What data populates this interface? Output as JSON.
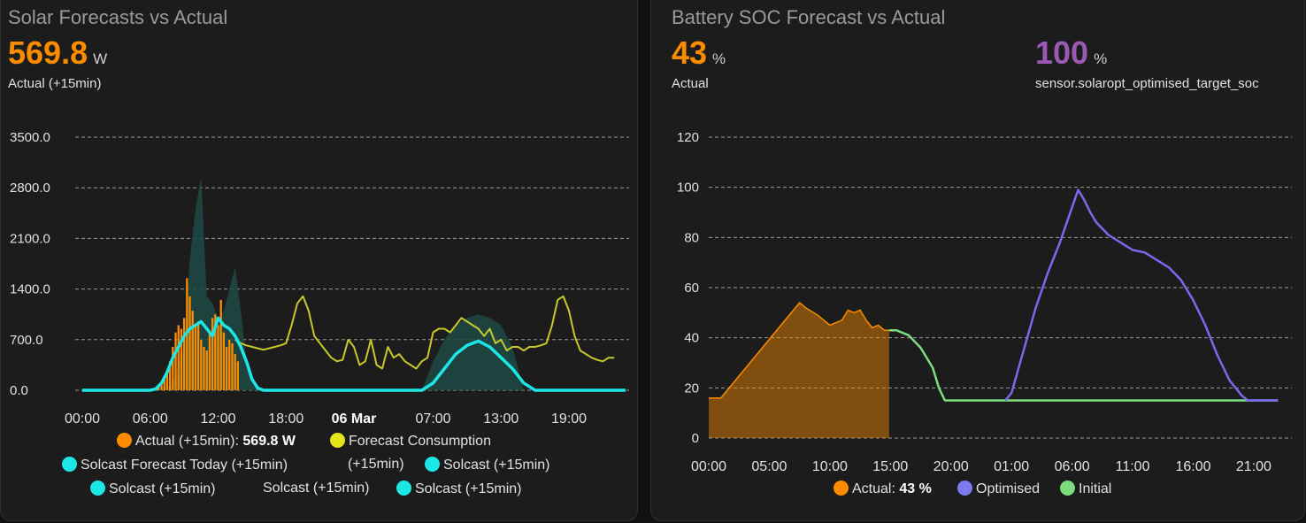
{
  "solar_card": {
    "title": "Solar Forecasts vs Actual",
    "state_value": "569.8",
    "state_unit": "W",
    "state_label": "Actual (+15min)",
    "value_color": "#fb8c00",
    "legend": {
      "actual_label": "Actual (+15min):",
      "actual_value": "569.8 W",
      "forecast_consumption": "Forecast Consumption",
      "solcast_today": "Solcast Forecast Today (+15min)",
      "plus15": "(+15min)",
      "solcast_1": "Solcast (+15min)",
      "solcast_2": "Solcast (+15min)",
      "solcast_3": "Solcast (+15min)",
      "solcast_4": "Solcast (+15min)"
    }
  },
  "battery_card": {
    "title": "Battery SOC Forecast vs Actual",
    "state_value": "43",
    "state_unit": "%",
    "state_label": "Actual",
    "target_value": "100",
    "target_unit": "%",
    "target_label": "sensor.solaropt_optimised_target_soc",
    "value_color": "#fb8c00",
    "target_color": "#9b59b6",
    "legend": {
      "actual_label": "Actual:",
      "actual_value": "43 %",
      "optimised": "Optimised",
      "initial": "Initial"
    }
  },
  "chart_data": [
    {
      "type": "bar+line",
      "title": "",
      "xlabel": "",
      "ylabel": "",
      "ylim": [
        0,
        3500
      ],
      "yticks": [
        "3500.0",
        "2800.0",
        "2100.0",
        "1400.0",
        "700.0",
        "0.0"
      ],
      "xticks": [
        "00:00",
        "06:00",
        "12:00",
        "18:00",
        "06 Mar",
        "07:00",
        "13:00",
        "19:00"
      ],
      "xtick_hours": [
        0,
        6,
        12,
        18,
        24,
        31,
        37,
        43
      ],
      "x_range_hours": [
        0,
        48
      ],
      "grid": true,
      "colors": {
        "actual": "#fb8c00",
        "consumption": "#c8c82a",
        "solcast": "#1ce6e6",
        "band": "#1e4a44"
      },
      "actual_bars": {
        "name": "Actual (+15min)",
        "x": [
          6.5,
          6.75,
          7.0,
          7.25,
          7.5,
          7.75,
          8.0,
          8.25,
          8.5,
          8.75,
          9.0,
          9.25,
          9.5,
          9.75,
          10.0,
          10.25,
          10.5,
          10.75,
          11.0,
          11.25,
          11.5,
          11.75,
          12.0,
          12.25,
          12.5,
          12.75,
          13.0,
          13.25,
          13.5,
          13.75,
          14.0
        ],
        "values": [
          30,
          50,
          80,
          150,
          250,
          400,
          600,
          800,
          900,
          850,
          1000,
          1550,
          1300,
          1100,
          900,
          950,
          700,
          600,
          550,
          800,
          1000,
          1050,
          900,
          1250,
          800,
          600,
          700,
          650,
          500,
          400,
          0
        ]
      },
      "forecast_consumption": {
        "name": "Forecast Consumption",
        "x": [
          13.5,
          14,
          14.5,
          15,
          15.5,
          16,
          16.5,
          17,
          17.5,
          18,
          18.5,
          19,
          19.5,
          20,
          20.5,
          21,
          21.5,
          22,
          22.5,
          23,
          23.5,
          24,
          24.5,
          25,
          25.5,
          26,
          26.5,
          27,
          27.5,
          28,
          28.5,
          29,
          29.5,
          30,
          30.5,
          31,
          31.5,
          32,
          32.5,
          33,
          33.5,
          34,
          34.5,
          35,
          35.5,
          36,
          36.5,
          37,
          37.5,
          38,
          38.5,
          39,
          39.5,
          40,
          40.5,
          41,
          41.5,
          42,
          42.5,
          43,
          43.5,
          44,
          44.5,
          45,
          45.5,
          46,
          46.5,
          47
        ],
        "values": [
          700,
          650,
          620,
          600,
          580,
          560,
          580,
          600,
          620,
          650,
          900,
          1200,
          1300,
          1100,
          750,
          650,
          550,
          450,
          400,
          420,
          700,
          600,
          350,
          400,
          700,
          350,
          300,
          600,
          450,
          500,
          400,
          350,
          300,
          400,
          450,
          800,
          850,
          850,
          800,
          900,
          1000,
          950,
          900,
          850,
          750,
          850,
          650,
          700,
          550,
          600,
          600,
          550,
          600,
          600,
          620,
          650,
          900,
          1250,
          1300,
          1100,
          750,
          550,
          500,
          450,
          420,
          400,
          450,
          450
        ]
      },
      "solcast_band_high": {
        "x": [
          7,
          8,
          9,
          9.5,
          10,
          10.5,
          11,
          11.5,
          12,
          12.5,
          13,
          13.5,
          14,
          14.5,
          15,
          15.5,
          30,
          31,
          32,
          33,
          34,
          35,
          36,
          37,
          38,
          39
        ],
        "values": [
          0,
          100,
          600,
          1800,
          2500,
          2950,
          1300,
          1200,
          1000,
          1100,
          1400,
          1700,
          1100,
          400,
          100,
          0,
          0,
          400,
          700,
          900,
          1000,
          1050,
          1000,
          900,
          600,
          0
        ]
      },
      "solcast_today": {
        "name": "Solcast Forecast Today (+15min)",
        "x": [
          0,
          6,
          6.5,
          7,
          7.5,
          8,
          8.5,
          9,
          9.5,
          10,
          10.5,
          11,
          11.5,
          12,
          12.5,
          13,
          13.5,
          14,
          14.5,
          15,
          15.5,
          16,
          24,
          26,
          30,
          31,
          32,
          33,
          34,
          35,
          36,
          37,
          38,
          39,
          40,
          48
        ],
        "values": [
          0,
          0,
          20,
          100,
          250,
          450,
          600,
          750,
          850,
          900,
          950,
          850,
          750,
          1000,
          900,
          850,
          750,
          600,
          400,
          150,
          30,
          0,
          0,
          0,
          0,
          100,
          300,
          500,
          620,
          680,
          600,
          450,
          300,
          100,
          0,
          0
        ]
      }
    },
    {
      "type": "area+line",
      "title": "",
      "xlabel": "",
      "ylabel": "",
      "ylim": [
        0,
        120
      ],
      "yticks": [
        "120",
        "100",
        "80",
        "60",
        "40",
        "20",
        "0"
      ],
      "xticks": [
        "00:00",
        "05:00",
        "10:00",
        "15:00",
        "20:00",
        "01:00",
        "06:00",
        "11:00",
        "16:00",
        "21:00"
      ],
      "xtick_hours": [
        0,
        5,
        10,
        15,
        20,
        25,
        30,
        35,
        40,
        45
      ],
      "x_range_hours": [
        0,
        48
      ],
      "grid": true,
      "colors": {
        "actual": "#fb8c00",
        "optimised": "#7b68ee",
        "initial": "#7ddb80"
      },
      "actual_soc": {
        "name": "Actual",
        "x": [
          0,
          1,
          7.5,
          8,
          9,
          10,
          11,
          11.5,
          12,
          12.5,
          13,
          13.5,
          14,
          14.5,
          14.9
        ],
        "values": [
          16,
          16,
          54,
          52,
          49,
          45,
          47,
          51,
          50,
          51,
          47,
          44,
          45,
          43,
          43
        ]
      },
      "initial_soc": {
        "name": "Initial",
        "x": [
          14.9,
          15.5,
          16.5,
          17.5,
          18.5,
          19,
          19.5,
          47
        ],
        "values": [
          43,
          43,
          41,
          36,
          28,
          20,
          15,
          15
        ]
      },
      "optimised_soc": {
        "name": "Optimised",
        "x": [
          24.5,
          25,
          26,
          27,
          28,
          29,
          30,
          30.5,
          31,
          31.5,
          32,
          33,
          34,
          35,
          36,
          37,
          38,
          39,
          40,
          41,
          42,
          43,
          44,
          44.5,
          45,
          46,
          47
        ],
        "values": [
          15,
          18,
          35,
          52,
          66,
          78,
          92,
          99,
          95,
          90,
          86,
          81,
          78,
          75,
          74,
          71,
          68,
          63,
          55,
          45,
          33,
          23,
          17,
          15,
          15,
          15,
          15
        ]
      }
    }
  ]
}
